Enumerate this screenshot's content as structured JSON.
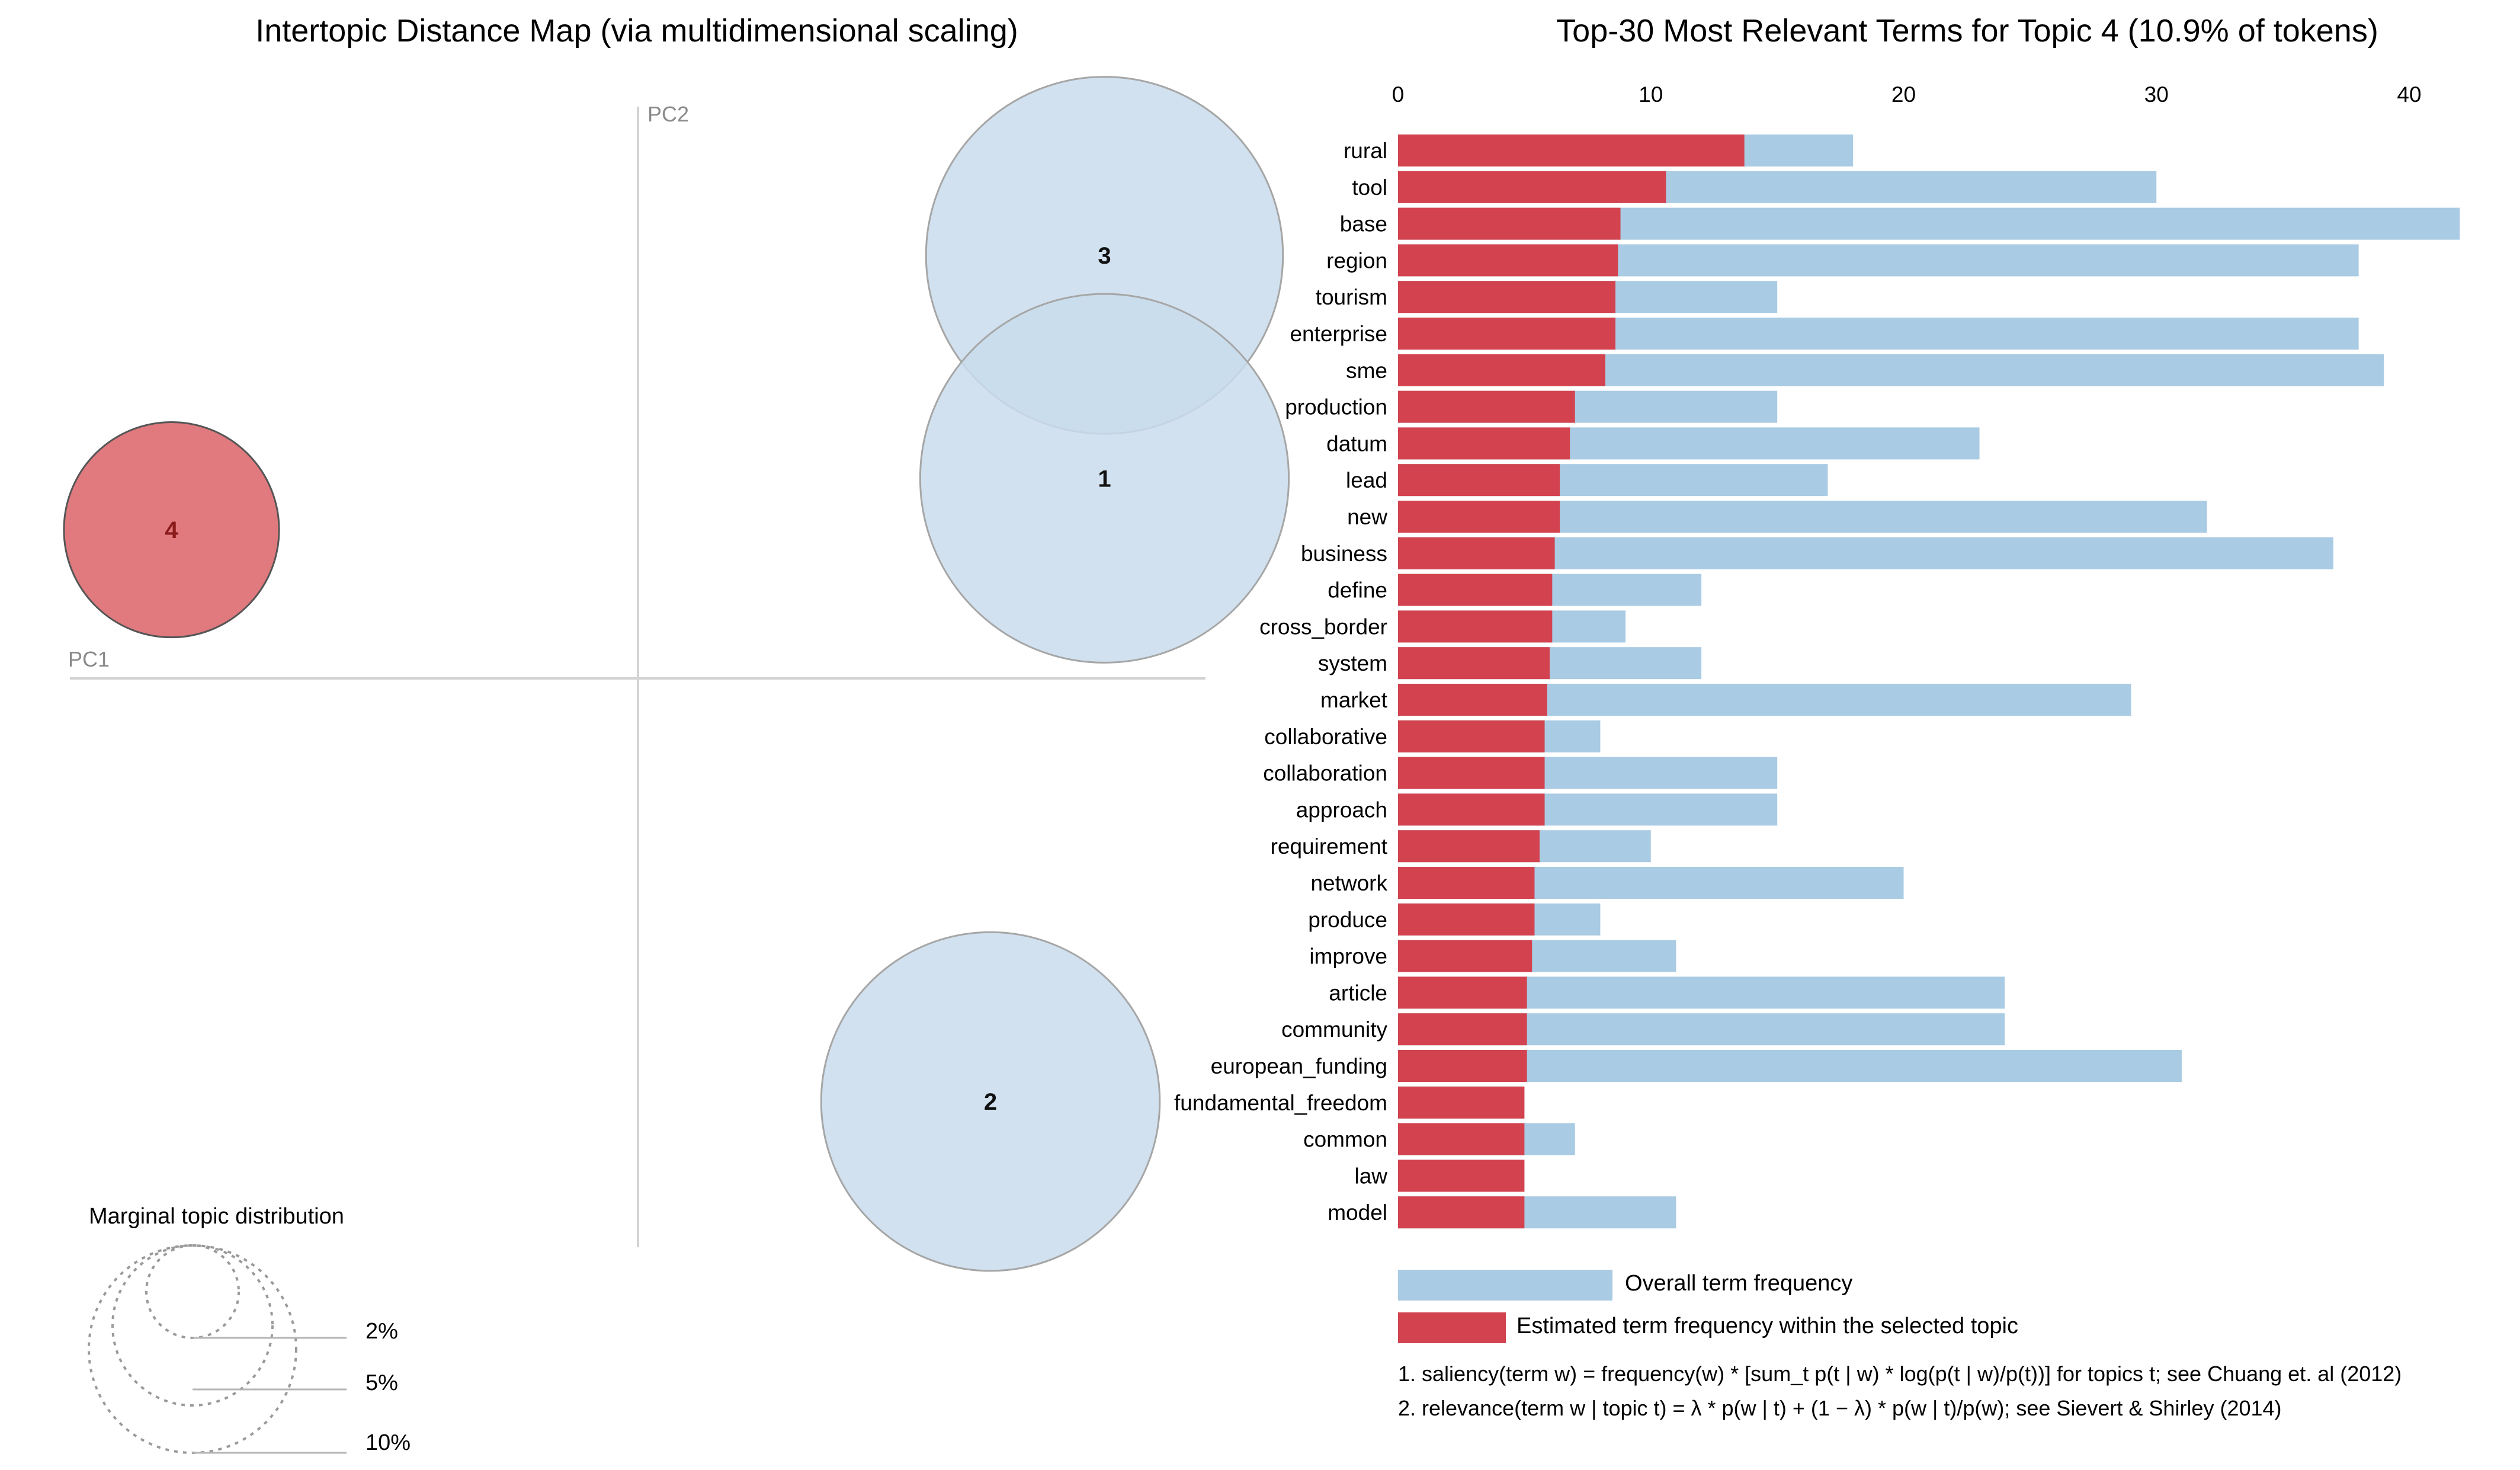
{
  "colors": {
    "overall": "#a9cbe3",
    "topic": "#d3434f",
    "circle_fill": "#c9dcec",
    "circle_stroke": "#a6a6a6",
    "selected_fill": "#e07a7e",
    "selected_stroke": "#555555"
  },
  "left": {
    "title": "Intertopic Distance Map (via multidimensional scaling)",
    "pc1_label": "PC1",
    "pc2_label": "PC2",
    "marginal_title": "Marginal topic distribution",
    "marginal_labels": [
      "2%",
      "5%",
      "10%"
    ]
  },
  "legend": {
    "overall": "Overall term frequency",
    "topic": "Estimated term frequency within the selected topic"
  },
  "notes": [
    "1. saliency(term w) = frequency(w) * [sum_t p(t | w) * log(p(t | w)/p(t))] for topics t; see Chuang et. al (2012)",
    "2. relevance(term w | topic t) = λ * p(w | t) + (1 − λ) * p(w | t)/p(w); see Sievert & Shirley (2014)"
  ],
  "chart_data": [
    {
      "type": "scatter",
      "title": "Intertopic Distance Map (via multidimensional scaling)",
      "xlabel": "PC1",
      "ylabel": "PC2",
      "x_range": [
        -1.0,
        1.0
      ],
      "y_range": [
        -1.0,
        1.0
      ],
      "selected_topic": "4",
      "topics": [
        {
          "label": "3",
          "x": 0.9,
          "y": 0.74,
          "percent": 30.0
        },
        {
          "label": "1",
          "x": 0.9,
          "y": 0.35,
          "percent": 32.0
        },
        {
          "label": "2",
          "x": 0.68,
          "y": -0.74,
          "percent": 27.0
        },
        {
          "label": "4",
          "x": -0.9,
          "y": 0.26,
          "percent": 10.9
        }
      ]
    },
    {
      "type": "bar",
      "orientation": "horizontal",
      "title": "Top-30 Most Relevant Terms for Topic 4 (10.9% of tokens)",
      "xlim": [
        0,
        42
      ],
      "ticks": [
        0,
        10,
        20,
        30,
        40
      ],
      "categories": [
        "rural",
        "tool",
        "base",
        "region",
        "tourism",
        "enterprise",
        "sme",
        "production",
        "datum",
        "lead",
        "new",
        "business",
        "define",
        "cross_border",
        "system",
        "market",
        "collaborative",
        "collaboration",
        "approach",
        "requirement",
        "network",
        "produce",
        "improve",
        "article",
        "community",
        "european_funding",
        "fundamental_freedom",
        "common",
        "law",
        "model"
      ],
      "series": [
        {
          "name": "Overall term frequency",
          "values": [
            18,
            30,
            42,
            38,
            15,
            38,
            39,
            15,
            23,
            17,
            32,
            37,
            12,
            9,
            12,
            29,
            8,
            15,
            15,
            10,
            20,
            8,
            11,
            24,
            24,
            31,
            5,
            7,
            5,
            11
          ]
        },
        {
          "name": "Estimated term frequency within the selected topic",
          "values": [
            13.7,
            10.6,
            8.8,
            8.7,
            8.6,
            8.6,
            8.2,
            7.0,
            6.8,
            6.4,
            6.4,
            6.2,
            6.1,
            6.1,
            6.0,
            5.9,
            5.8,
            5.8,
            5.8,
            5.6,
            5.4,
            5.4,
            5.3,
            5.1,
            5.1,
            5.1,
            5.0,
            5.0,
            5.0,
            5.0
          ]
        }
      ]
    }
  ]
}
